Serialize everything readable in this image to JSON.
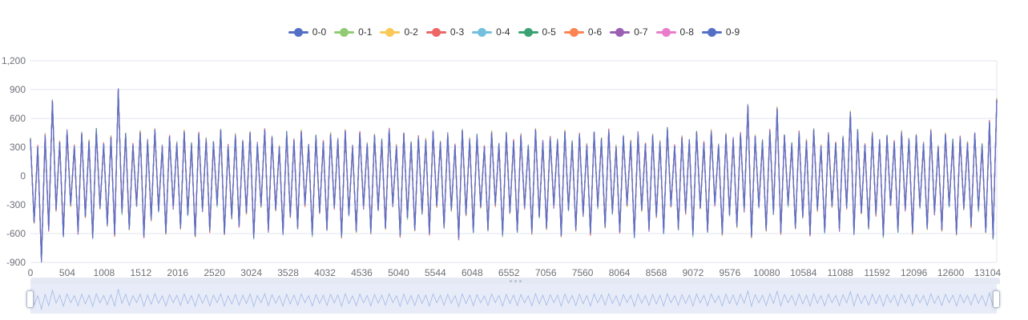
{
  "page": {
    "background": "#ffffff"
  },
  "legend": {
    "position": "top-center",
    "text_color": "#333333"
  },
  "chart_data": {
    "type": "line",
    "title": "",
    "xlabel": "",
    "ylabel": "",
    "grid": true,
    "legend_position": "top-center",
    "xlim": [
      0,
      13230
    ],
    "ylim": [
      -900,
      1200
    ],
    "x_ticks": [
      0,
      504,
      1008,
      1512,
      2016,
      2520,
      3024,
      3528,
      4032,
      4536,
      5040,
      5544,
      6048,
      6552,
      7056,
      7560,
      8064,
      8568,
      9072,
      9576,
      10080,
      10584,
      11088,
      11592,
      12096,
      12600,
      13104
    ],
    "y_ticks": [
      {
        "value": 1200,
        "label": "1,200"
      },
      {
        "value": 900,
        "label": "900"
      },
      {
        "value": 600,
        "label": "600"
      },
      {
        "value": 300,
        "label": "300"
      },
      {
        "value": 0,
        "label": "0"
      },
      {
        "value": -300,
        "label": "-300"
      },
      {
        "value": -600,
        "label": "-600"
      },
      {
        "value": -900,
        "label": "-900"
      }
    ],
    "axis_label_color": "#6E7079",
    "gridline_color": "#E0E6F1",
    "series": [
      {
        "name": "0-0",
        "color": "#5470c6"
      },
      {
        "name": "0-1",
        "color": "#91cc75"
      },
      {
        "name": "0-2",
        "color": "#fac858"
      },
      {
        "name": "0-3",
        "color": "#ee6666"
      },
      {
        "name": "0-4",
        "color": "#73c0de"
      },
      {
        "name": "0-5",
        "color": "#3ba272"
      },
      {
        "name": "0-6",
        "color": "#fc8452"
      },
      {
        "name": "0-7",
        "color": "#9a60b4"
      },
      {
        "name": "0-8",
        "color": "#ea7ccc"
      },
      {
        "name": "0-9",
        "color": "#5470c6"
      }
    ],
    "series_note": "All 10 series are nearly identical high-frequency oscillating signals that overlap; values below are a downsampled shared trace (each series deviates only a few units from it).",
    "x_sample_step": 50.1136,
    "base_values": [
      380,
      -480,
      300,
      -880,
      420,
      -560,
      780,
      -350,
      350,
      -620,
      460,
      -300,
      310,
      -580,
      440,
      -420,
      360,
      -640,
      470,
      -330,
      330,
      -500,
      400,
      -610,
      900,
      -380,
      430,
      -550,
      320,
      -300,
      450,
      -630,
      370,
      -450,
      480,
      -360,
      300,
      -590,
      410,
      -320,
      340,
      -540,
      460,
      -400,
      320,
      -620,
      440,
      -350,
      380,
      -570,
      350,
      -300,
      470,
      -600,
      310,
      -430,
      420,
      -520,
      360,
      -380,
      450,
      -640,
      330,
      -310,
      480,
      -560,
      400,
      -350,
      300,
      -600,
      440,
      -420,
      370,
      -530,
      460,
      -300,
      320,
      -610,
      410,
      -380,
      350,
      -550,
      430,
      -330,
      380,
      -630,
      470,
      -400,
      300,
      -570,
      450,
      -320,
      330,
      -590,
      420,
      -350,
      360,
      -540,
      480,
      -300,
      310,
      -620,
      440,
      -430,
      340,
      -560,
      400,
      -380,
      370,
      -600,
      460,
      -310,
      350,
      -530,
      430,
      -350,
      320,
      -640,
      470,
      -400,
      380,
      -580,
      410,
      -320,
      300,
      -550,
      450,
      -300,
      330,
      -610,
      440,
      -380,
      360,
      -570,
      420,
      -330,
      310,
      -590,
      480,
      -420,
      350,
      -540,
      400,
      -310,
      370,
      -620,
      460,
      -350,
      340,
      -560,
      430,
      -400,
      320,
      -600,
      450,
      -320,
      380,
      -530,
      470,
      -380,
      300,
      -580,
      410,
      -300,
      360,
      -630,
      440,
      -350,
      330,
      -550,
      420,
      -420,
      350,
      -590,
      480,
      -310,
      310,
      -540,
      400,
      -380,
      370,
      -610,
      450,
      -330,
      340,
      -570,
      460,
      -300,
      320,
      -600,
      430,
      -400,
      380,
      -520,
      440,
      -350,
      730,
      -630,
      410,
      -320,
      350,
      -560,
      470,
      -380,
      700,
      -590,
      420,
      -300,
      330,
      -540,
      450,
      -420,
      360,
      -610,
      480,
      -350,
      310,
      -580,
      430,
      -310,
      340,
      -550,
      400,
      -330,
      660,
      -600,
      460,
      -380,
      320,
      -530,
      440,
      -400,
      370,
      -620,
      410,
      -300,
      350,
      -570,
      450,
      -350,
      380,
      -590,
      420,
      -320,
      330,
      -540,
      470,
      -380,
      300,
      -560,
      430,
      -310,
      360,
      -600,
      400,
      -330,
      340,
      -520,
      440,
      -350,
      320,
      -580,
      560,
      -640,
      790
    ]
  },
  "datazoom": {
    "range_selected": "100%",
    "track_color": "#e8ecf8",
    "shadow_line_color": "#9fb9e6",
    "handle_color": "#ffffff"
  }
}
